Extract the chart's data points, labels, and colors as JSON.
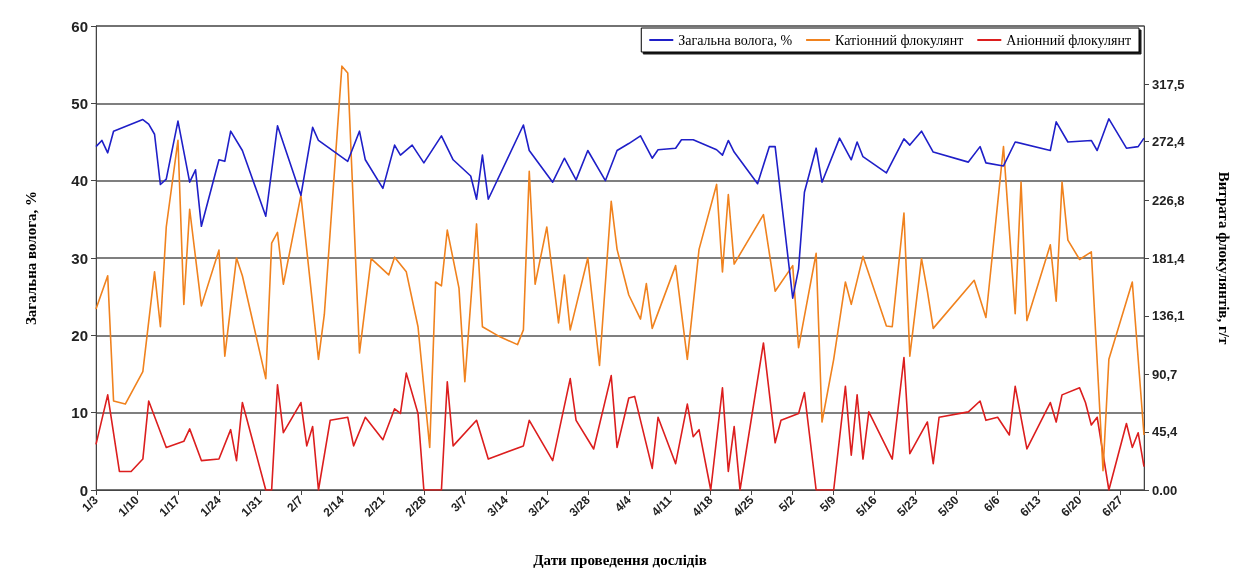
{
  "chart_data": {
    "type": "line",
    "xlabel": "Дати проведення дослідів",
    "ylabel": "Загальна волога, %",
    "y2label": "Витрата флокулянтів, г/т",
    "xlim": [
      "--01-03",
      "--07-01"
    ],
    "xticks": [
      {
        "value": "--01-03",
        "label": "1/3"
      },
      {
        "value": "--01-10",
        "label": "1/10"
      },
      {
        "value": "--01-17",
        "label": "1/17"
      },
      {
        "value": "--01-24",
        "label": "1/24"
      },
      {
        "value": "--01-31",
        "label": "1/31"
      },
      {
        "value": "--02-07",
        "label": "2/7"
      },
      {
        "value": "--02-14",
        "label": "2/14"
      },
      {
        "value": "--02-21",
        "label": "2/21"
      },
      {
        "value": "--02-28",
        "label": "2/28"
      },
      {
        "value": "--03-07",
        "label": "3/7"
      },
      {
        "value": "--03-14",
        "label": "3/14"
      },
      {
        "value": "--03-21",
        "label": "3/21"
      },
      {
        "value": "--03-28",
        "label": "3/28"
      },
      {
        "value": "--04-04",
        "label": "4/4"
      },
      {
        "value": "--04-11",
        "label": "4/11"
      },
      {
        "value": "--04-18",
        "label": "4/18"
      },
      {
        "value": "--04-25",
        "label": "4/25"
      },
      {
        "value": "--05-02",
        "label": "5/2"
      },
      {
        "value": "--05-09",
        "label": "5/9"
      },
      {
        "value": "--05-16",
        "label": "5/16"
      },
      {
        "value": "--05-23",
        "label": "5/23"
      },
      {
        "value": "--05-30",
        "label": "5/30"
      },
      {
        "value": "--06-06",
        "label": "6/6"
      },
      {
        "value": "--06-13",
        "label": "6/13"
      },
      {
        "value": "--06-20",
        "label": "6/20"
      },
      {
        "value": "--06-27",
        "label": "6/27"
      }
    ],
    "ylim": [
      0,
      60
    ],
    "yticks": [
      0,
      10,
      20,
      30,
      40,
      50,
      60
    ],
    "y2lim": [
      0,
      362.9
    ],
    "y2ticks": [
      {
        "value": 0,
        "label": "0.00"
      },
      {
        "value": 45.4,
        "label": "45,4"
      },
      {
        "value": 90.7,
        "label": "90,7"
      },
      {
        "value": 136.1,
        "label": "136,1"
      },
      {
        "value": 181.4,
        "label": "181,4"
      },
      {
        "value": 226.8,
        "label": "226,8"
      },
      {
        "value": 272.4,
        "label": "272,4"
      },
      {
        "value": 317.5,
        "label": "317,5"
      }
    ],
    "grid": "y",
    "legend": "top right",
    "series": [
      {
        "name": "Загальна волога, %",
        "color": "#1f1fc8",
        "x": [
          "--01-03",
          "--01-04",
          "--01-05",
          "--01-06",
          "--01-11",
          "--01-12",
          "--01-13",
          "--01-14",
          "--01-15",
          "--01-17",
          "--01-19",
          "--01-20",
          "--01-21",
          "--01-24",
          "--01-25",
          "--01-26",
          "--01-28",
          "--02-01",
          "--02-03",
          "--02-07",
          "--02-09",
          "--02-10",
          "--02-15",
          "--02-17",
          "--02-18",
          "--02-21",
          "--02-23",
          "--02-24",
          "--02-26",
          "--02-28",
          "--03-03",
          "--03-05",
          "--03-08",
          "--03-09",
          "--03-10",
          "--03-11",
          "--03-17",
          "--03-18",
          "--03-22",
          "--03-24",
          "--03-26",
          "--03-28",
          "--03-31",
          "--04-02",
          "--04-04",
          "--04-06",
          "--04-08",
          "--04-09",
          "--04-12",
          "--04-13",
          "--04-15",
          "--04-19",
          "--04-20",
          "--04-21",
          "--04-22",
          "--04-26",
          "--04-28",
          "--04-29",
          "--05-02",
          "--05-03",
          "--05-04",
          "--05-06",
          "--05-07",
          "--05-10",
          "--05-12",
          "--05-13",
          "--05-14",
          "--05-18",
          "--05-21",
          "--05-22",
          "--05-24",
          "--05-26",
          "--06-01",
          "--06-03",
          "--06-04",
          "--06-07",
          "--06-09",
          "--06-15",
          "--06-16",
          "--06-18",
          "--06-22",
          "--06-23",
          "--06-25",
          "--06-28",
          "--06-30",
          "--07-01"
        ],
        "values": [
          44.4,
          45.2,
          43.6,
          46.4,
          47.9,
          47.3,
          46.0,
          39.5,
          40.2,
          47.7,
          39.8,
          41.4,
          34.1,
          42.7,
          42.5,
          46.4,
          43.9,
          35.4,
          47.1,
          38.1,
          46.9,
          45.2,
          42.5,
          46.4,
          42.7,
          39.0,
          44.6,
          43.3,
          44.6,
          42.3,
          45.8,
          42.7,
          40.6,
          37.6,
          43.3,
          37.6,
          47.2,
          43.9,
          39.8,
          42.9,
          40.1,
          43.9,
          40.0,
          43.9,
          44.8,
          45.8,
          42.9,
          44.0,
          44.2,
          45.3,
          45.3,
          44.0,
          43.3,
          45.2,
          43.7,
          39.6,
          44.4,
          44.4,
          24.8,
          28.6,
          38.5,
          44.2,
          39.8,
          45.5,
          42.7,
          45.0,
          43.1,
          41.0,
          45.4,
          44.6,
          46.4,
          43.7,
          42.4,
          44.4,
          42.3,
          41.9,
          45.0,
          43.9,
          47.6,
          45.0,
          45.2,
          43.9,
          48.0,
          44.2,
          44.4,
          45.5
        ]
      },
      {
        "name": "Катіонний флокулянт",
        "color": "#f0821e",
        "axis": "y2",
        "x": [
          "--01-03",
          "--01-05",
          "--01-06",
          "--01-08",
          "--01-11",
          "--01-13",
          "--01-14",
          "--01-15",
          "--01-17",
          "--01-18",
          "--01-19",
          "--01-21",
          "--01-24",
          "--01-25",
          "--01-27",
          "--01-28",
          "--02-01",
          "--02-02",
          "--02-03",
          "--02-04",
          "--02-07",
          "--02-10",
          "--02-11",
          "--02-14",
          "--02-15",
          "--02-16",
          "--02-17",
          "--02-19",
          "--02-22",
          "--02-23",
          "--02-25",
          "--02-27",
          "--03-01",
          "--03-02",
          "--03-03",
          "--03-04",
          "--03-06",
          "--03-07",
          "--03-09",
          "--03-10",
          "--03-13",
          "--03-16",
          "--03-17",
          "--03-18",
          "--03-19",
          "--03-21",
          "--03-23",
          "--03-24",
          "--03-25",
          "--03-28",
          "--03-30",
          "--04-01",
          "--04-02",
          "--04-04",
          "--04-06",
          "--04-07",
          "--04-08",
          "--04-12",
          "--04-14",
          "--04-16",
          "--04-19",
          "--04-20",
          "--04-21",
          "--04-22",
          "--04-27",
          "--04-29",
          "--05-02",
          "--05-03",
          "--05-06",
          "--05-07",
          "--05-09",
          "--05-11",
          "--05-12",
          "--05-14",
          "--05-18",
          "--05-19",
          "--05-21",
          "--05-22",
          "--05-24",
          "--05-25",
          "--05-26",
          "--06-02",
          "--06-04",
          "--06-07",
          "--06-09",
          "--06-10",
          "--06-11",
          "--06-15",
          "--06-16",
          "--06-17",
          "--06-18",
          "--06-20",
          "--06-22",
          "--06-24",
          "--06-25",
          "--06-29",
          "--07-01"
        ],
        "values": [
          141.6,
          167.6,
          69.6,
          67.2,
          92.6,
          170.6,
          127.7,
          205.7,
          273.5,
          145.2,
          219.6,
          144.0,
          187.6,
          104.7,
          181.5,
          167.6,
          87.1,
          193.0,
          201.5,
          160.9,
          230.5,
          102.2,
          137.3,
          331.5,
          326.1,
          217.8,
          107.1,
          180.9,
          168.2,
          182.1,
          170.6,
          127.7,
          33.3,
          162.7,
          159.7,
          203.3,
          157.9,
          84.7,
          208.1,
          127.7,
          119.8,
          113.7,
          125.2,
          249.3,
          160.9,
          205.7,
          130.7,
          168.2,
          125.2,
          181.5,
          97.4,
          225.7,
          188.2,
          152.5,
          133.7,
          161.5,
          126.4,
          175.5,
          102.2,
          188.2,
          239.0,
          170.6,
          231.1,
          176.7,
          215.4,
          155.5,
          175.5,
          111.3,
          185.1,
          53.2,
          102.2,
          162.7,
          145.2,
          182.7,
          128.3,
          127.7,
          216.6,
          104.7,
          180.9,
          155.5,
          126.4,
          164.0,
          134.9,
          268.6,
          137.9,
          240.8,
          132.5,
          191.8,
          147.6,
          240.8,
          195.4,
          180.3,
          186.3,
          15.1,
          102.2,
          162.7,
          43.0
        ]
      },
      {
        "name": "Аніонний флокулянт",
        "color": "#dc1e1e",
        "axis": "y2",
        "x": [
          "--01-03",
          "--01-05",
          "--01-07",
          "--01-09",
          "--01-11",
          "--01-12",
          "--01-15",
          "--01-18",
          "--01-19",
          "--01-21",
          "--01-24",
          "--01-26",
          "--01-27",
          "--01-28",
          "--02-01",
          "--02-02",
          "--02-03",
          "--02-04",
          "--02-07",
          "--02-08",
          "--02-09",
          "--02-10",
          "--02-12",
          "--02-15",
          "--02-16",
          "--02-18",
          "--02-21",
          "--02-23",
          "--02-24",
          "--02-25",
          "--02-27",
          "--02-28",
          "--03-03",
          "--03-04",
          "--03-05",
          "--03-09",
          "--03-11",
          "--03-17",
          "--03-18",
          "--03-22",
          "--03-25",
          "--03-26",
          "--03-29",
          "--04-01",
          "--04-02",
          "--04-04",
          "--04-05",
          "--04-08",
          "--04-09",
          "--04-12",
          "--04-14",
          "--04-15",
          "--04-16",
          "--04-18",
          "--04-20",
          "--04-21",
          "--04-22",
          "--04-23",
          "--04-27",
          "--04-29",
          "--04-30",
          "--05-03",
          "--05-04",
          "--05-06",
          "--05-09",
          "--05-11",
          "--05-12",
          "--05-13",
          "--05-14",
          "--05-15",
          "--05-19",
          "--05-21",
          "--05-22",
          "--05-25",
          "--05-26",
          "--05-27",
          "--06-01",
          "--06-03",
          "--06-04",
          "--06-06",
          "--06-08",
          "--06-09",
          "--06-11",
          "--06-15",
          "--06-16",
          "--06-17",
          "--06-20",
          "--06-21",
          "--06-22",
          "--06-23",
          "--06-25",
          "--06-28",
          "--06-29",
          "--06-30",
          "--07-01"
        ],
        "values": [
          35.7,
          74.4,
          14.5,
          14.5,
          24.2,
          69.6,
          33.3,
          38.1,
          47.8,
          23.0,
          24.2,
          47.2,
          23.0,
          68.4,
          0,
          0,
          82.3,
          44.8,
          68.4,
          34.5,
          49.6,
          0,
          54.5,
          56.9,
          34.5,
          56.9,
          39.3,
          63.5,
          59.9,
          91.4,
          59.9,
          0,
          0,
          84.7,
          34.5,
          54.5,
          24.2,
          34.5,
          54.5,
          23.0,
          87.1,
          54.5,
          32.1,
          89.5,
          33.3,
          72.0,
          73.2,
          16.9,
          56.9,
          20.6,
          67.2,
          41.7,
          47.2,
          0,
          79.9,
          14.5,
          49.6,
          0,
          115.0,
          36.9,
          54.5,
          59.9,
          76.2,
          0,
          0,
          81.1,
          27.2,
          74.4,
          24.2,
          61.1,
          24.2,
          103.5,
          28.4,
          53.2,
          20.6,
          56.9,
          61.1,
          69.6,
          54.5,
          56.9,
          43.0,
          81.1,
          32.1,
          68.4,
          53.2,
          74.4,
          79.9,
          68.4,
          50.8,
          56.9,
          0,
          52.0,
          33.3,
          44.8,
          18.2
        ]
      }
    ]
  }
}
